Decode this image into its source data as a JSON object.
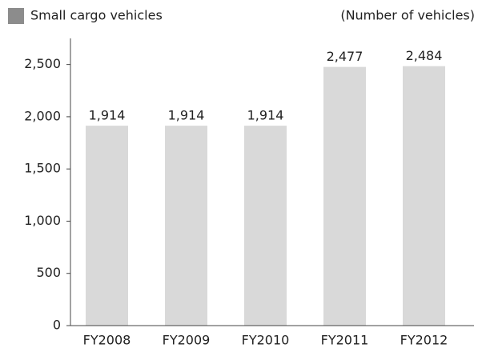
{
  "chart_data": {
    "type": "bar",
    "legend": "Small cargo vehicles",
    "unit_label": "(Number of vehicles)",
    "categories": [
      "FY2008",
      "FY2009",
      "FY2010",
      "FY2011",
      "FY2012"
    ],
    "values": [
      1914,
      1914,
      1914,
      2477,
      2484
    ],
    "value_labels": [
      "1,914",
      "1,914",
      "1,914",
      "2,477",
      "2,484"
    ],
    "color": "#d9d9d9",
    "legend_color": "#8c8c8c",
    "ylim": [
      0,
      2750
    ],
    "yticks": [
      0,
      500,
      {
        "value": 1000,
        "label": "1,000"
      },
      {
        "value": 1500,
        "label": "1,500"
      },
      {
        "value": 2000,
        "label": "2,000"
      },
      {
        "value": 2500,
        "label": "2,500"
      }
    ]
  }
}
